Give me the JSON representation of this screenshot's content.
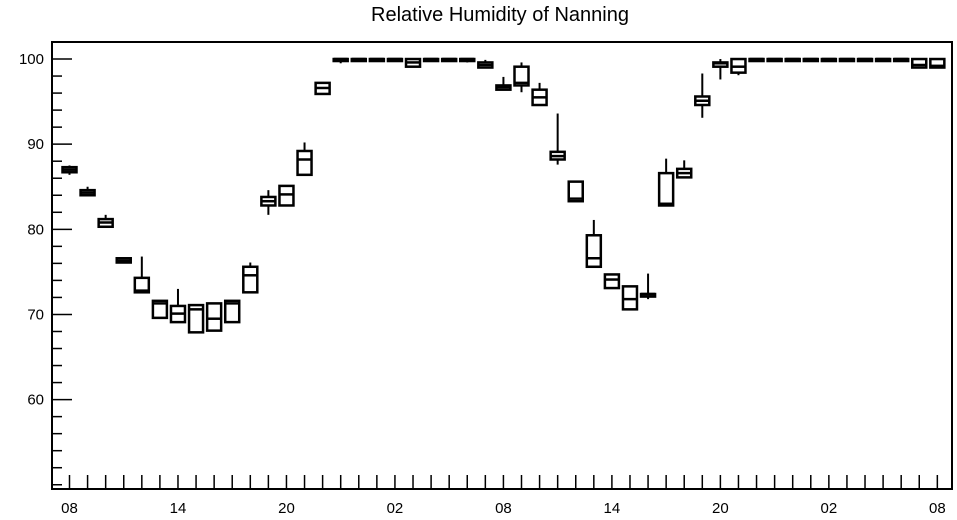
{
  "chart_data": {
    "type": "box",
    "title": "Relative Humidity of Nanning",
    "xlabel": "",
    "ylabel": "",
    "ylim": [
      49.5,
      102
    ],
    "y_ticks": [
      60,
      70,
      80,
      90,
      100
    ],
    "x_tick_labels": [
      "08",
      "14",
      "20",
      "02",
      "08",
      "14",
      "20",
      "02",
      "08"
    ],
    "x_tick_hours": [
      0,
      6,
      12,
      18,
      24,
      30,
      36,
      42,
      48
    ],
    "grid": false,
    "legend": "none",
    "boxes": [
      {
        "hour": 0,
        "whisker_low": 86.4,
        "q1": 86.7,
        "median": 87.0,
        "q3": 87.3,
        "whisker_high": 87.5
      },
      {
        "hour": 1,
        "whisker_low": 84.0,
        "q1": 84.0,
        "median": 84.3,
        "q3": 84.6,
        "whisker_high": 85.0
      },
      {
        "hour": 2,
        "whisker_low": 80.3,
        "q1": 80.3,
        "median": 80.8,
        "q3": 81.2,
        "whisker_high": 81.7
      },
      {
        "hour": 3,
        "whisker_low": 76.1,
        "q1": 76.1,
        "median": 76.3,
        "q3": 76.6,
        "whisker_high": 76.6
      },
      {
        "hour": 4,
        "whisker_low": 72.6,
        "q1": 72.6,
        "median": 72.8,
        "q3": 74.3,
        "whisker_high": 76.8
      },
      {
        "hour": 5,
        "whisker_low": 69.6,
        "q1": 69.6,
        "median": 71.3,
        "q3": 71.6,
        "whisker_high": 71.6
      },
      {
        "hour": 6,
        "whisker_low": 69.1,
        "q1": 69.1,
        "median": 70.1,
        "q3": 71.0,
        "whisker_high": 73.0
      },
      {
        "hour": 7,
        "whisker_low": 67.9,
        "q1": 67.9,
        "median": 70.6,
        "q3": 71.1,
        "whisker_high": 71.1
      },
      {
        "hour": 8,
        "whisker_low": 68.1,
        "q1": 68.1,
        "median": 69.5,
        "q3": 71.3,
        "whisker_high": 71.3
      },
      {
        "hour": 9,
        "whisker_low": 69.1,
        "q1": 69.1,
        "median": 71.3,
        "q3": 71.6,
        "whisker_high": 71.6
      },
      {
        "hour": 10,
        "whisker_low": 72.6,
        "q1": 72.6,
        "median": 74.6,
        "q3": 75.6,
        "whisker_high": 76.1
      },
      {
        "hour": 11,
        "whisker_low": 81.7,
        "q1": 82.8,
        "median": 83.3,
        "q3": 83.8,
        "whisker_high": 84.6
      },
      {
        "hour": 12,
        "whisker_low": 82.8,
        "q1": 82.8,
        "median": 84.1,
        "q3": 85.1,
        "whisker_high": 85.1
      },
      {
        "hour": 13,
        "whisker_low": 86.4,
        "q1": 86.4,
        "median": 88.2,
        "q3": 89.2,
        "whisker_high": 90.2
      },
      {
        "hour": 14,
        "whisker_low": 95.9,
        "q1": 95.9,
        "median": 96.6,
        "q3": 97.2,
        "whisker_high": 97.2
      },
      {
        "hour": 15,
        "whisker_low": 99.5,
        "q1": 99.9,
        "median": 100.0,
        "q3": 100.0,
        "whisker_high": 100.0
      },
      {
        "hour": 16,
        "whisker_low": 100.0,
        "q1": 100.0,
        "median": 100.0,
        "q3": 100.0,
        "whisker_high": 100.0
      },
      {
        "hour": 17,
        "whisker_low": 100.0,
        "q1": 100.0,
        "median": 100.0,
        "q3": 100.0,
        "whisker_high": 100.0
      },
      {
        "hour": 18,
        "whisker_low": 100.0,
        "q1": 100.0,
        "median": 100.0,
        "q3": 100.0,
        "whisker_high": 100.0
      },
      {
        "hour": 19,
        "whisker_low": 99.1,
        "q1": 99.1,
        "median": 99.6,
        "q3": 100.0,
        "whisker_high": 100.0
      },
      {
        "hour": 20,
        "whisker_low": 100.0,
        "q1": 100.0,
        "median": 100.0,
        "q3": 100.0,
        "whisker_high": 100.0
      },
      {
        "hour": 21,
        "whisker_low": 100.0,
        "q1": 100.0,
        "median": 100.0,
        "q3": 100.0,
        "whisker_high": 100.0
      },
      {
        "hour": 22,
        "whisker_low": 99.6,
        "q1": 100.0,
        "median": 100.0,
        "q3": 100.0,
        "whisker_high": 100.0
      },
      {
        "hour": 23,
        "whisker_low": 99.0,
        "q1": 99.0,
        "median": 99.3,
        "q3": 99.6,
        "whisker_high": 99.9
      },
      {
        "hour": 24,
        "whisker_low": 96.4,
        "q1": 96.4,
        "median": 96.7,
        "q3": 96.9,
        "whisker_high": 97.9
      },
      {
        "hour": 25,
        "whisker_low": 96.1,
        "q1": 96.9,
        "median": 97.2,
        "q3": 99.1,
        "whisker_high": 99.6
      },
      {
        "hour": 26,
        "whisker_low": 94.6,
        "q1": 94.6,
        "median": 95.5,
        "q3": 96.4,
        "whisker_high": 97.2
      },
      {
        "hour": 27,
        "whisker_low": 87.6,
        "q1": 88.2,
        "median": 88.6,
        "q3": 89.1,
        "whisker_high": 93.6
      },
      {
        "hour": 28,
        "whisker_low": 83.3,
        "q1": 83.3,
        "median": 83.6,
        "q3": 85.6,
        "whisker_high": 85.6
      },
      {
        "hour": 29,
        "whisker_low": 75.6,
        "q1": 75.6,
        "median": 76.6,
        "q3": 79.3,
        "whisker_high": 81.1
      },
      {
        "hour": 30,
        "whisker_low": 73.1,
        "q1": 73.1,
        "median": 74.1,
        "q3": 74.7,
        "whisker_high": 74.7
      },
      {
        "hour": 31,
        "whisker_low": 70.6,
        "q1": 70.6,
        "median": 71.8,
        "q3": 73.3,
        "whisker_high": 73.3
      },
      {
        "hour": 32,
        "whisker_low": 71.8,
        "q1": 72.1,
        "median": 72.4,
        "q3": 72.4,
        "whisker_high": 74.8
      },
      {
        "hour": 33,
        "whisker_low": 82.8,
        "q1": 82.8,
        "median": 83.0,
        "q3": 86.6,
        "whisker_high": 88.3
      },
      {
        "hour": 34,
        "whisker_low": 86.1,
        "q1": 86.1,
        "median": 86.6,
        "q3": 87.1,
        "whisker_high": 88.1
      },
      {
        "hour": 35,
        "whisker_low": 93.1,
        "q1": 94.6,
        "median": 95.1,
        "q3": 95.6,
        "whisker_high": 98.3
      },
      {
        "hour": 36,
        "whisker_low": 97.6,
        "q1": 99.1,
        "median": 99.5,
        "q3": 99.6,
        "whisker_high": 100.0
      },
      {
        "hour": 37,
        "whisker_low": 98.1,
        "q1": 98.4,
        "median": 99.1,
        "q3": 100.0,
        "whisker_high": 100.0
      },
      {
        "hour": 38,
        "whisker_low": 100.0,
        "q1": 100.0,
        "median": 100.0,
        "q3": 100.0,
        "whisker_high": 100.0
      },
      {
        "hour": 39,
        "whisker_low": 100.0,
        "q1": 100.0,
        "median": 100.0,
        "q3": 100.0,
        "whisker_high": 100.0
      },
      {
        "hour": 40,
        "whisker_low": 100.0,
        "q1": 100.0,
        "median": 100.0,
        "q3": 100.0,
        "whisker_high": 100.0
      },
      {
        "hour": 41,
        "whisker_low": 100.0,
        "q1": 100.0,
        "median": 100.0,
        "q3": 100.0,
        "whisker_high": 100.0
      },
      {
        "hour": 42,
        "whisker_low": 100.0,
        "q1": 100.0,
        "median": 100.0,
        "q3": 100.0,
        "whisker_high": 100.0
      },
      {
        "hour": 43,
        "whisker_low": 100.0,
        "q1": 100.0,
        "median": 100.0,
        "q3": 100.0,
        "whisker_high": 100.0
      },
      {
        "hour": 44,
        "whisker_low": 100.0,
        "q1": 100.0,
        "median": 100.0,
        "q3": 100.0,
        "whisker_high": 100.0
      },
      {
        "hour": 45,
        "whisker_low": 100.0,
        "q1": 100.0,
        "median": 100.0,
        "q3": 100.0,
        "whisker_high": 100.0
      },
      {
        "hour": 46,
        "whisker_low": 100.0,
        "q1": 100.0,
        "median": 100.0,
        "q3": 100.0,
        "whisker_high": 100.0
      },
      {
        "hour": 47,
        "whisker_low": 99.0,
        "q1": 99.0,
        "median": 99.3,
        "q3": 100.0,
        "whisker_high": 100.0
      },
      {
        "hour": 48,
        "whisker_low": 99.0,
        "q1": 99.0,
        "median": 99.2,
        "q3": 100.0,
        "whisker_high": 100.0
      }
    ],
    "colors": {
      "box_stroke": "#000000",
      "axis": "#000000",
      "background": "#ffffff"
    }
  }
}
